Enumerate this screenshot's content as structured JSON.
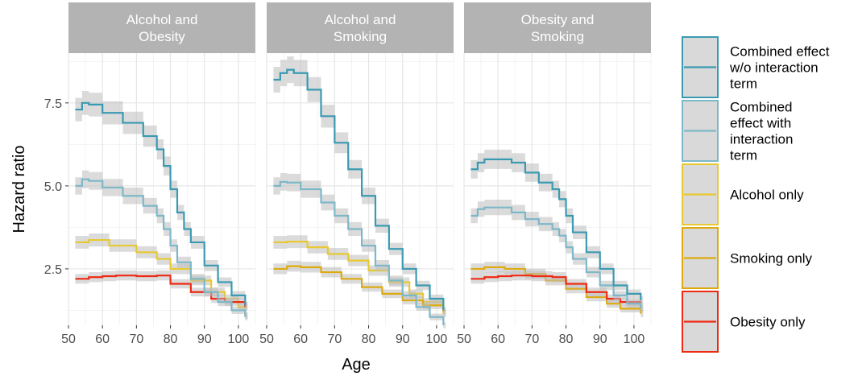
{
  "chart_data": {
    "type": "line",
    "xlabel": "Age",
    "ylabel": "Hazard ratio",
    "xlim": [
      50,
      105
    ],
    "ylim": [
      0.8,
      9.0
    ],
    "x_ticks": [
      50,
      60,
      70,
      80,
      90,
      100
    ],
    "x_tick_labels": [
      "50",
      "60",
      "70",
      "80",
      "90",
      "100"
    ],
    "y_ticks": [
      2.5,
      5.0,
      7.5
    ],
    "y_tick_labels": [
      "2.5",
      "5.0",
      "7.5"
    ],
    "grid": true,
    "legend_position": "right",
    "legend": [
      {
        "key": "without",
        "label_lines": [
          "Combined effect",
          "w/o interaction",
          "term"
        ],
        "color": "#3A9AB2"
      },
      {
        "key": "with",
        "label_lines": [
          "Combined",
          "effect with",
          "interaction",
          "term"
        ],
        "color": "#7DB8C8"
      },
      {
        "key": "alcohol",
        "label_lines": [
          "Alcohol only"
        ],
        "color": "#E8C930"
      },
      {
        "key": "smoking",
        "label_lines": [
          "Smoking only"
        ],
        "color": "#DDAA0F"
      },
      {
        "key": "obesity",
        "label_lines": [
          "Obesity only"
        ],
        "color": "#EE2A14"
      }
    ],
    "panels": [
      {
        "title_lines": [
          "Alcohol and",
          "Obesity"
        ],
        "series": [
          {
            "key": "alcohol",
            "x": [
              52,
              56,
              62,
              70,
              76,
              80,
              86,
              92,
              96,
              100,
              102
            ],
            "y": [
              3.3,
              3.37,
              3.2,
              3.0,
              2.8,
              2.5,
              2.15,
              1.8,
              1.6,
              1.35,
              1.1
            ]
          },
          {
            "key": "obesity",
            "x": [
              52,
              56,
              60,
              64,
              70,
              76,
              80,
              86,
              92,
              96,
              102
            ],
            "y": [
              2.2,
              2.25,
              2.28,
              2.3,
              2.28,
              2.3,
              2.05,
              1.8,
              1.6,
              1.5,
              1.35
            ]
          },
          {
            "key": "with",
            "x": [
              52,
              54,
              56,
              60,
              66,
              72,
              76,
              78,
              80,
              82,
              86,
              90,
              94,
              98,
              102
            ],
            "y": [
              5.0,
              5.2,
              5.15,
              4.95,
              4.7,
              4.4,
              4.1,
              3.7,
              3.2,
              2.7,
              2.2,
              1.8,
              1.5,
              1.25,
              1.05
            ]
          },
          {
            "key": "without",
            "x": [
              52,
              54,
              56,
              60,
              66,
              72,
              76,
              78,
              80,
              82,
              84,
              86,
              90,
              94,
              98,
              102
            ],
            "y": [
              7.3,
              7.5,
              7.45,
              7.2,
              6.9,
              6.5,
              6.1,
              5.6,
              4.9,
              4.2,
              3.7,
              3.3,
              2.6,
              2.1,
              1.7,
              1.4
            ]
          }
        ]
      },
      {
        "title_lines": [
          "Alcohol and",
          "Smoking"
        ],
        "series": [
          {
            "key": "alcohol",
            "x": [
              52,
              56,
              62,
              68,
              74,
              80,
              86,
              92,
              96,
              102
            ],
            "y": [
              3.3,
              3.32,
              3.15,
              2.95,
              2.75,
              2.45,
              2.1,
              1.75,
              1.5,
              1.15
            ]
          },
          {
            "key": "smoking",
            "x": [
              52,
              56,
              60,
              66,
              72,
              78,
              84,
              90,
              96,
              102
            ],
            "y": [
              2.5,
              2.58,
              2.55,
              2.4,
              2.2,
              1.95,
              1.75,
              1.55,
              1.4,
              1.2
            ]
          },
          {
            "key": "with",
            "x": [
              52,
              54,
              56,
              60,
              66,
              70,
              74,
              78,
              82,
              86,
              90,
              94,
              98,
              102
            ],
            "y": [
              5.0,
              5.12,
              5.1,
              4.9,
              4.5,
              4.1,
              3.7,
              3.2,
              2.6,
              2.15,
              1.7,
              1.35,
              1.05,
              0.8
            ]
          },
          {
            "key": "without",
            "x": [
              52,
              54,
              56,
              58,
              62,
              66,
              70,
              74,
              78,
              82,
              86,
              90,
              94,
              98,
              102
            ],
            "y": [
              8.2,
              8.4,
              8.5,
              8.4,
              7.9,
              7.1,
              6.3,
              5.5,
              4.7,
              3.8,
              3.1,
              2.5,
              2.0,
              1.6,
              1.25
            ]
          }
        ]
      },
      {
        "title_lines": [
          "Obesity and",
          "Smoking"
        ],
        "series": [
          {
            "key": "smoking",
            "x": [
              52,
              56,
              62,
              68,
              74,
              80,
              86,
              92,
              96,
              102
            ],
            "y": [
              2.5,
              2.55,
              2.5,
              2.35,
              2.15,
              1.9,
              1.65,
              1.45,
              1.3,
              1.15
            ]
          },
          {
            "key": "obesity",
            "x": [
              52,
              56,
              60,
              64,
              70,
              76,
              80,
              86,
              92,
              96,
              102
            ],
            "y": [
              2.2,
              2.25,
              2.28,
              2.3,
              2.28,
              2.25,
              2.05,
              1.8,
              1.6,
              1.5,
              1.35
            ]
          },
          {
            "key": "with",
            "x": [
              52,
              54,
              56,
              60,
              64,
              68,
              72,
              76,
              78,
              80,
              82,
              86,
              90,
              94,
              98,
              102
            ],
            "y": [
              4.1,
              4.3,
              4.35,
              4.35,
              4.2,
              4.0,
              3.85,
              3.7,
              3.5,
              3.15,
              2.8,
              2.4,
              2.0,
              1.7,
              1.45,
              1.3
            ]
          },
          {
            "key": "without",
            "x": [
              52,
              54,
              56,
              60,
              64,
              68,
              72,
              76,
              78,
              80,
              82,
              86,
              90,
              94,
              98,
              102
            ],
            "y": [
              5.5,
              5.7,
              5.8,
              5.8,
              5.7,
              5.4,
              5.1,
              4.9,
              4.6,
              4.1,
              3.6,
              3.0,
              2.5,
              2.0,
              1.75,
              1.55
            ]
          }
        ]
      }
    ]
  }
}
